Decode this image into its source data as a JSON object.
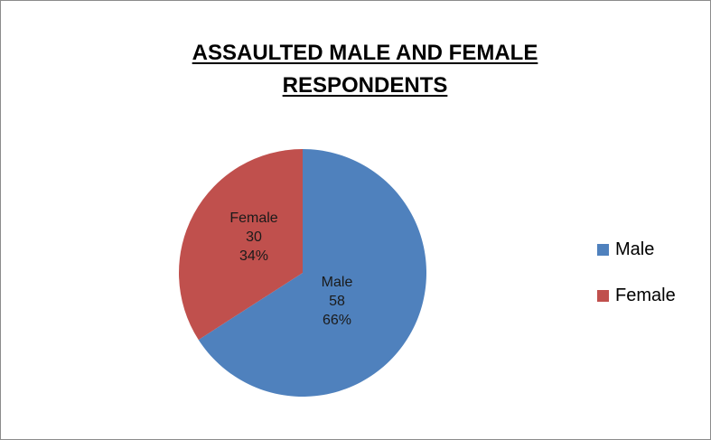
{
  "chart_data": {
    "type": "pie",
    "title_lines": [
      "ASSAULTED MALE AND FEMALE",
      "RESPONDENTS"
    ],
    "slices": [
      {
        "label": "Male",
        "value": 58,
        "percent": "66%",
        "color": "#4f81bd"
      },
      {
        "label": "Female",
        "value": 30,
        "percent": "34%",
        "color": "#c0504d"
      }
    ],
    "legend": {
      "position": "right",
      "entries": [
        "Male",
        "Female"
      ]
    }
  }
}
